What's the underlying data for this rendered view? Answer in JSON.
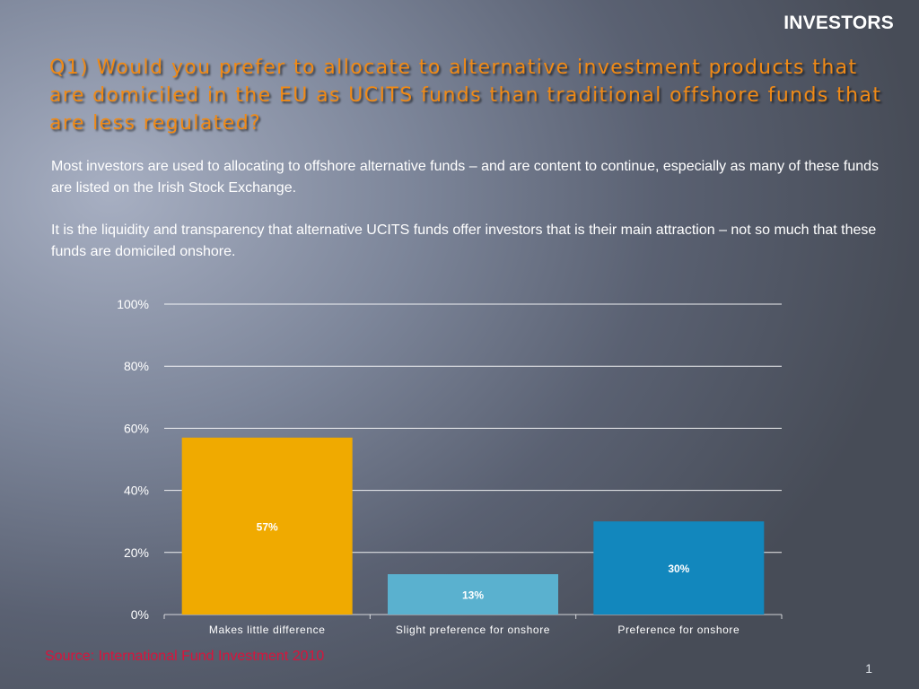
{
  "slide": {
    "section_tag": "INVESTORS",
    "title": "Q1)  Would you prefer to allocate to alternative investment products that are domiciled in the EU as UCITS funds than traditional offshore funds that are less regulated?",
    "paragraphs": [
      "Most investors are used to allocating to offshore alternative funds – and are content to continue, especially as many of these funds are listed on the Irish Stock Exchange.",
      "It is the liquidity and transparency that alternative UCITS funds offer investors that is their main attraction – not so much that these funds are domiciled onshore."
    ],
    "source": "Source: International Fund Investment 2010",
    "page_number": "1"
  },
  "chart_data": {
    "type": "bar",
    "categories": [
      "Makes little difference",
      "Slight preference for onshore",
      "Preference for onshore"
    ],
    "values": [
      57,
      13,
      30
    ],
    "data_labels": [
      "57%",
      "13%",
      "30%"
    ],
    "bar_colors": [
      "#f0aa00",
      "#5ab1cf",
      "#1287bd"
    ],
    "title": "",
    "xlabel": "",
    "ylabel": "",
    "ylim": [
      0,
      100
    ],
    "yticks": [
      0,
      20,
      40,
      60,
      80,
      100
    ],
    "ytick_labels": [
      "0%",
      "20%",
      "40%",
      "60%",
      "80%",
      "100%"
    ],
    "grid": true,
    "legend": "none"
  },
  "colors": {
    "title": "#f08a16",
    "source": "#d8143c",
    "gridline": "#ffffff"
  }
}
